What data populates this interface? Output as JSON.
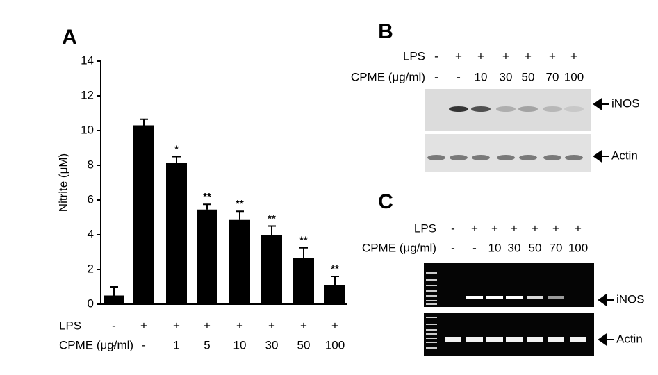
{
  "chart_data": {
    "type": "bar",
    "panel_label": "A",
    "y_label": "Nitrite (μM)",
    "color": "#000000",
    "values": [
      0.5,
      10.3,
      8.15,
      5.45,
      4.85,
      4.0,
      2.65,
      1.1
    ],
    "errors": [
      0.5,
      0.35,
      0.35,
      0.3,
      0.5,
      0.5,
      0.6,
      0.5
    ],
    "annotations": [
      null,
      null,
      "*",
      "**",
      "**",
      "**",
      "**",
      "**"
    ],
    "category_rows": [
      {
        "name": "LPS",
        "labels": [
          "-",
          "+",
          "+",
          "+",
          "+",
          "+",
          "+",
          "+"
        ]
      },
      {
        "name": "CPME (μg/ml)",
        "labels": [
          "-",
          "-",
          "1",
          "5",
          "10",
          "30",
          "50",
          "100"
        ]
      }
    ],
    "ylim": [
      0,
      14
    ],
    "yticks": [
      0,
      2,
      4,
      6,
      8,
      10,
      12,
      14
    ]
  },
  "western_blot": {
    "panel_label": "B",
    "rows": [
      {
        "name": "LPS",
        "labels": [
          "-",
          "+",
          "+",
          "+",
          "+",
          "+",
          "+"
        ]
      },
      {
        "name": "CPME (μg/ml)",
        "labels": [
          "-",
          "-",
          "10",
          "30",
          "50",
          "70",
          "100"
        ]
      }
    ],
    "bands": [
      "iNOS",
      "Actin"
    ]
  },
  "rt_pcr": {
    "panel_label": "C",
    "rows": [
      {
        "name": "LPS",
        "labels": [
          "-",
          "+",
          "+",
          "+",
          "+",
          "+",
          "+"
        ]
      },
      {
        "name": "CPME (μg/ml)",
        "labels": [
          "-",
          "-",
          "10",
          "30",
          "50",
          "70",
          "100"
        ]
      }
    ],
    "bands": [
      "iNOS",
      "Actin"
    ]
  }
}
